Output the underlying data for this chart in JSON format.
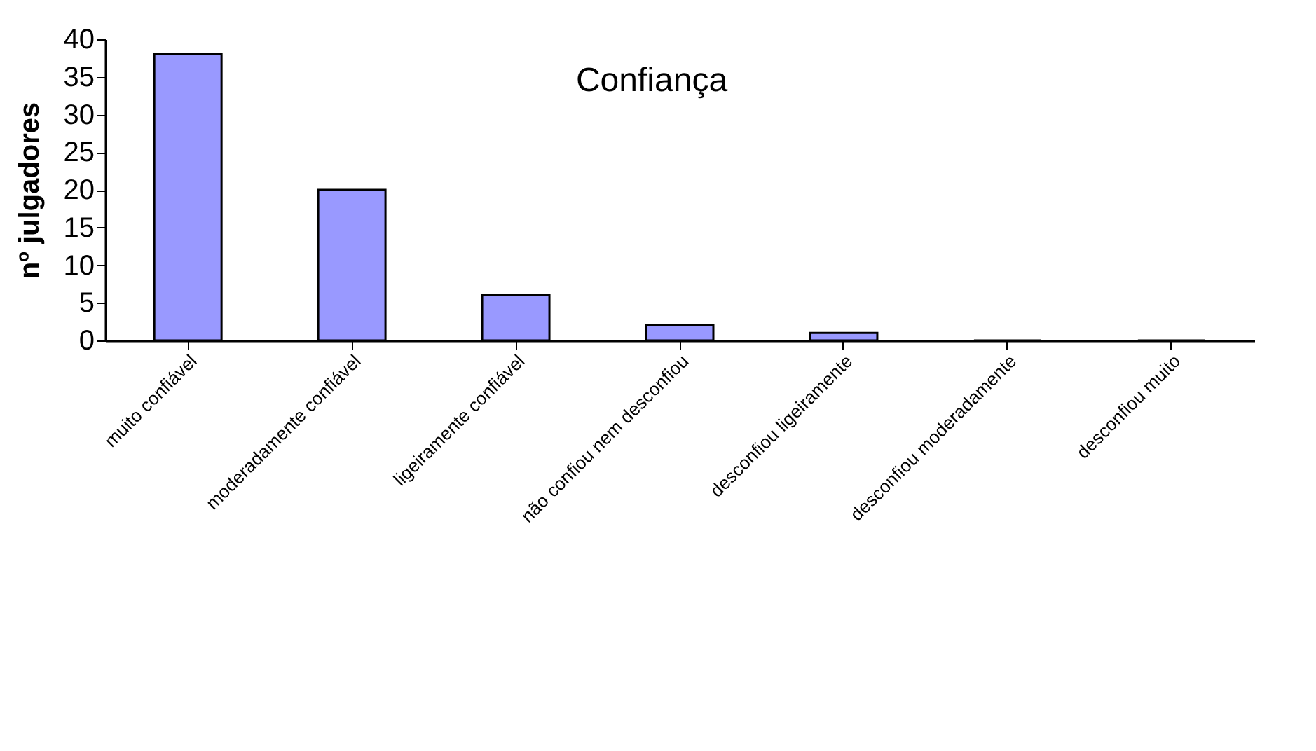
{
  "chart_data": {
    "type": "bar",
    "title": "Confiança",
    "ylabel": "nº julgadores",
    "categories": [
      "muito confiável",
      "moderadamente confiável",
      "ligeiramente confiável",
      "não confiou nem desconfiou",
      "desconfiou ligeiramente",
      "desconfiou moderadamente",
      "desconfiou muito"
    ],
    "values": [
      38,
      20,
      6,
      2,
      1,
      0,
      0
    ],
    "color": "#9999ff",
    "ylim": [
      0,
      40
    ],
    "yticks": [
      0,
      5,
      10,
      15,
      20,
      25,
      30,
      35,
      40
    ],
    "grid": false
  }
}
